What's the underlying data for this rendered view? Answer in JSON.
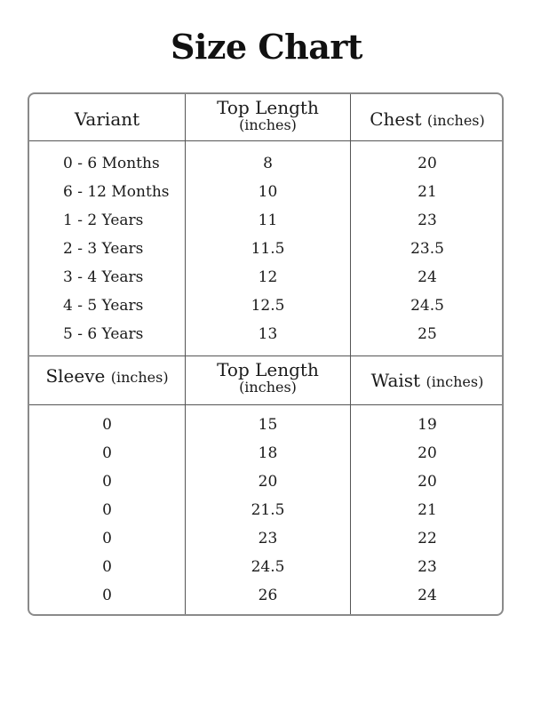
{
  "title": "Size Chart",
  "section1": {
    "headers": {
      "col1": "Variant",
      "col2_main": "Top Length",
      "col2_sub": "(inches)",
      "col3_main": "Chest",
      "col3_unit": "(inches)"
    },
    "rows": [
      {
        "variant": "0 - 6 Months",
        "top_length": "8",
        "chest": "20"
      },
      {
        "variant": "6 - 12 Months",
        "top_length": "10",
        "chest": "21"
      },
      {
        "variant": "1 - 2 Years",
        "top_length": "11",
        "chest": "23"
      },
      {
        "variant": "2 - 3 Years",
        "top_length": "11.5",
        "chest": "23.5"
      },
      {
        "variant": "3 - 4 Years",
        "top_length": "12",
        "chest": "24"
      },
      {
        "variant": "4 - 5 Years",
        "top_length": "12.5",
        "chest": "24.5"
      },
      {
        "variant": "5 - 6 Years",
        "top_length": "13",
        "chest": "25"
      }
    ]
  },
  "section2": {
    "headers": {
      "col1_main": "Sleeve",
      "col1_unit": "(inches)",
      "col2_main": "Top Length",
      "col2_sub": "(inches)",
      "col3_main": "Waist",
      "col3_unit": "(inches)"
    },
    "rows": [
      {
        "sleeve": "0",
        "top_length": "15",
        "waist": "19"
      },
      {
        "sleeve": "0",
        "top_length": "18",
        "waist": "20"
      },
      {
        "sleeve": "0",
        "top_length": "20",
        "waist": "20"
      },
      {
        "sleeve": "0",
        "top_length": "21.5",
        "waist": "21"
      },
      {
        "sleeve": "0",
        "top_length": "23",
        "waist": "22"
      },
      {
        "sleeve": "0",
        "top_length": "24.5",
        "waist": "23"
      },
      {
        "sleeve": "0",
        "top_length": "26",
        "waist": "24"
      }
    ]
  }
}
